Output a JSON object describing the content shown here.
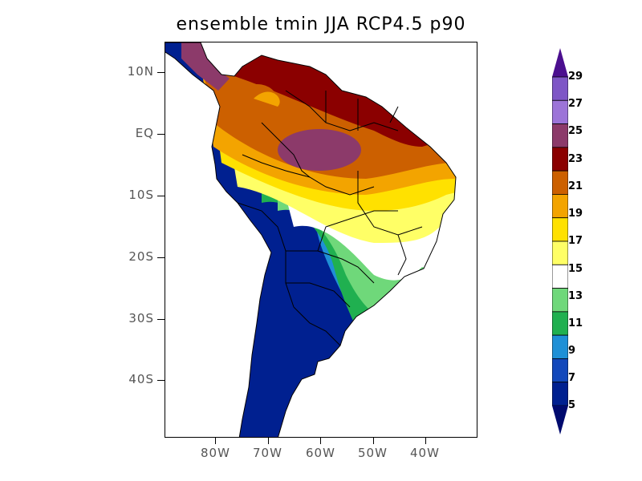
{
  "title": "ensemble tmin JJA RCP4.5 p90",
  "lat_labels": [
    "10N",
    "EQ",
    "10S",
    "20S",
    "30S",
    "40S"
  ],
  "lon_labels": [
    "80W",
    "70W",
    "60W",
    "50W",
    "40W"
  ],
  "colorbar": {
    "levels": [
      "29",
      "27",
      "25",
      "23",
      "21",
      "19",
      "17",
      "15",
      "13",
      "11",
      "9",
      "7",
      "5"
    ],
    "colors": [
      "#7e56c6",
      "#9c74d8",
      "#8c3a6a",
      "#8b0000",
      "#cc6000",
      "#f3a400",
      "#ffe100",
      "#ffff66",
      "#ffffff",
      "#6fd87a",
      "#20b050",
      "#1f90d6",
      "#1248bb",
      "#002090"
    ],
    "top_arrow_color": "#4b0f8f",
    "bottom_arrow_color": "#000a6e"
  },
  "colors": {
    "frame": "#000000",
    "boundary": "#000000"
  }
}
